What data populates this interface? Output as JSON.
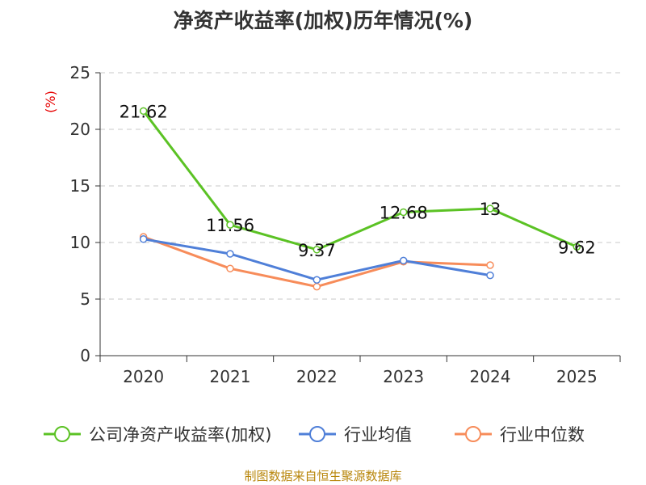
{
  "chart_data": {
    "type": "line",
    "title": "净资产收益率(加权)历年情况(%)",
    "ylabel": "(%)",
    "xlabel": "",
    "categories": [
      "2020",
      "2021",
      "2022",
      "2023",
      "2024",
      "2025"
    ],
    "ylim": [
      0,
      25
    ],
    "yticks": [
      0,
      5,
      10,
      15,
      20,
      25
    ],
    "grid": true,
    "legend_position": "bottom",
    "series": [
      {
        "name": "公司净资产收益率(加权)",
        "color": "#5bc224",
        "values": [
          21.62,
          11.56,
          9.37,
          12.68,
          13,
          9.62
        ],
        "labels": [
          "21.62",
          "11.56",
          "9.37",
          "12.68",
          "13",
          "9.62"
        ]
      },
      {
        "name": "行业均值",
        "color": "#4f7fd8",
        "values": [
          10.3,
          9.0,
          6.7,
          8.4,
          7.1,
          null
        ],
        "labels": []
      },
      {
        "name": "行业中位数",
        "color": "#f78c5a",
        "values": [
          10.5,
          7.7,
          6.1,
          8.3,
          8.0,
          null
        ],
        "labels": []
      }
    ],
    "source": "制图数据来自恒生聚源数据库"
  }
}
